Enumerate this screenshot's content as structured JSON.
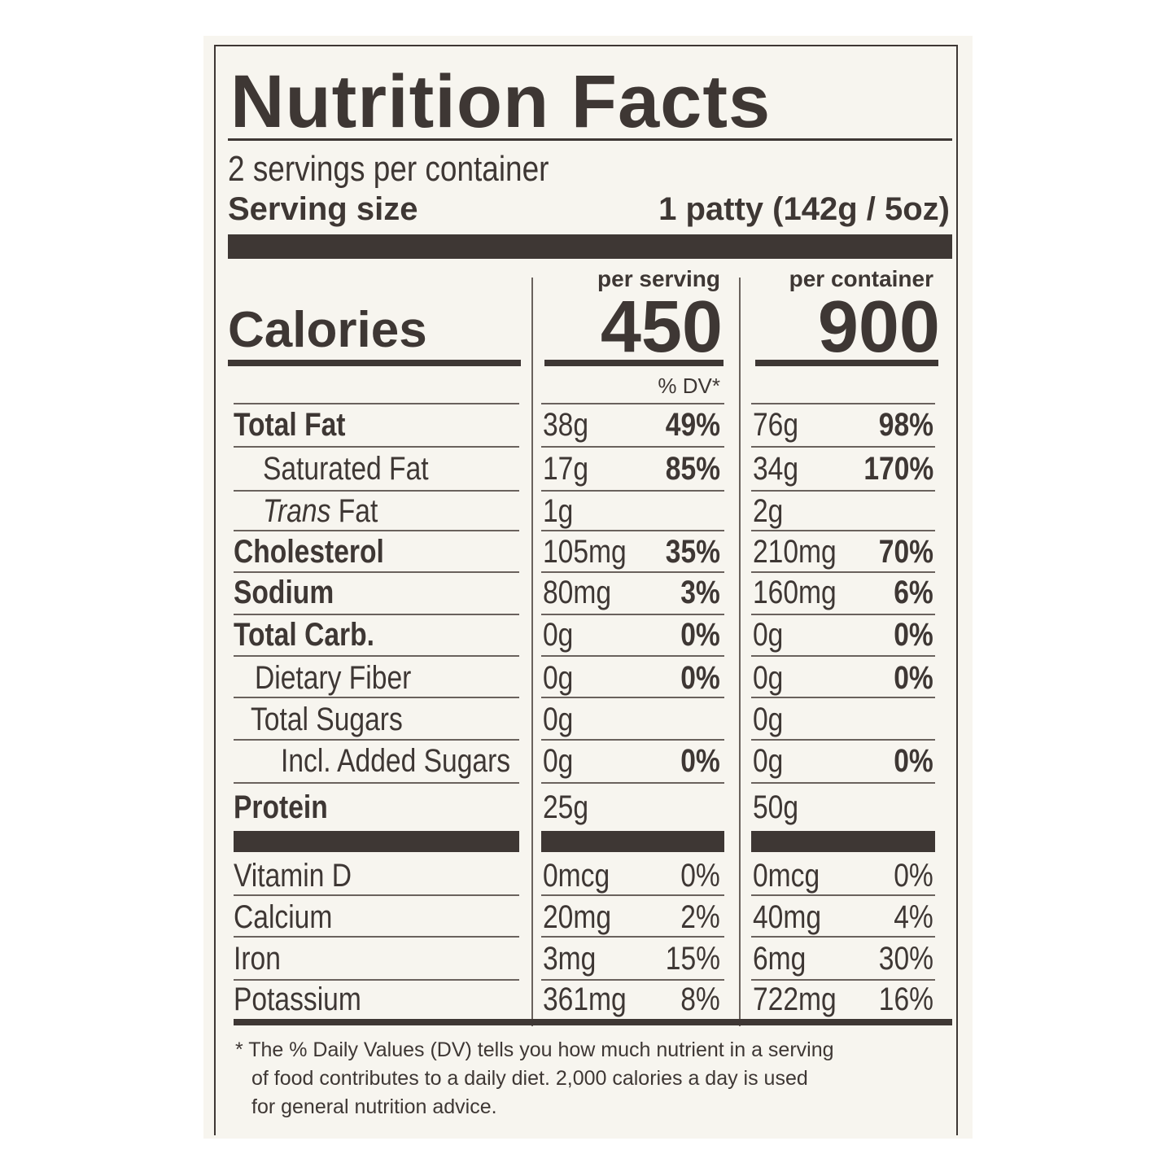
{
  "title": "Nutrition Facts",
  "servings_per_container": "2 servings per container",
  "serving_size_label": "Serving size",
  "serving_size_value": "1 patty (142g / 5oz)",
  "per_serving_label": "per serving",
  "per_container_label": "per container",
  "calories_label": "Calories",
  "calories_per_serving": "450",
  "calories_per_container": "900",
  "dv_header": "% DV*",
  "nutrients": [
    {
      "name": "Total Fat",
      "s_amt": "38g",
      "s_dv": "49%",
      "c_amt": "76g",
      "c_dv": "98%"
    },
    {
      "name": "Saturated Fat",
      "s_amt": "17g",
      "s_dv": "85%",
      "c_amt": "34g",
      "c_dv": "170%"
    },
    {
      "name_italic": "Trans",
      "name_rest": " Fat",
      "s_amt": "1g",
      "s_dv": "",
      "c_amt": "2g",
      "c_dv": ""
    },
    {
      "name": "Cholesterol",
      "s_amt": "105mg",
      "s_dv": "35%",
      "c_amt": "210mg",
      "c_dv": "70%"
    },
    {
      "name": "Sodium",
      "s_amt": "80mg",
      "s_dv": "3%",
      "c_amt": "160mg",
      "c_dv": "6%"
    },
    {
      "name": "Total Carb.",
      "s_amt": "0g",
      "s_dv": "0%",
      "c_amt": "0g",
      "c_dv": "0%"
    },
    {
      "name": "Dietary Fiber",
      "s_amt": "0g",
      "s_dv": "0%",
      "c_amt": "0g",
      "c_dv": "0%"
    },
    {
      "name": "Total Sugars",
      "s_amt": "0g",
      "s_dv": "",
      "c_amt": "0g",
      "c_dv": ""
    },
    {
      "name": "Incl. Added Sugars",
      "s_amt": "0g",
      "s_dv": "0%",
      "c_amt": "0g",
      "c_dv": "0%"
    },
    {
      "name": "Protein",
      "s_amt": "25g",
      "s_dv": "",
      "c_amt": "50g",
      "c_dv": ""
    }
  ],
  "vitamins": [
    {
      "name": "Vitamin D",
      "s_amt": "0mcg",
      "s_dv": "0%",
      "c_amt": "0mcg",
      "c_dv": "0%"
    },
    {
      "name": "Calcium",
      "s_amt": "20mg",
      "s_dv": "2%",
      "c_amt": "40mg",
      "c_dv": "4%"
    },
    {
      "name": "Iron",
      "s_amt": "3mg",
      "s_dv": "15%",
      "c_amt": "6mg",
      "c_dv": "30%"
    },
    {
      "name": "Potassium",
      "s_amt": "361mg",
      "s_dv": "8%",
      "c_amt": "722mg",
      "c_dv": "16%"
    }
  ],
  "footnote_lines": [
    "* The % Daily Values (DV) tells you how much nutrient in a serving",
    "of food contributes to a daily diet. 2,000 calories a day is used",
    "for general nutrition advice."
  ]
}
